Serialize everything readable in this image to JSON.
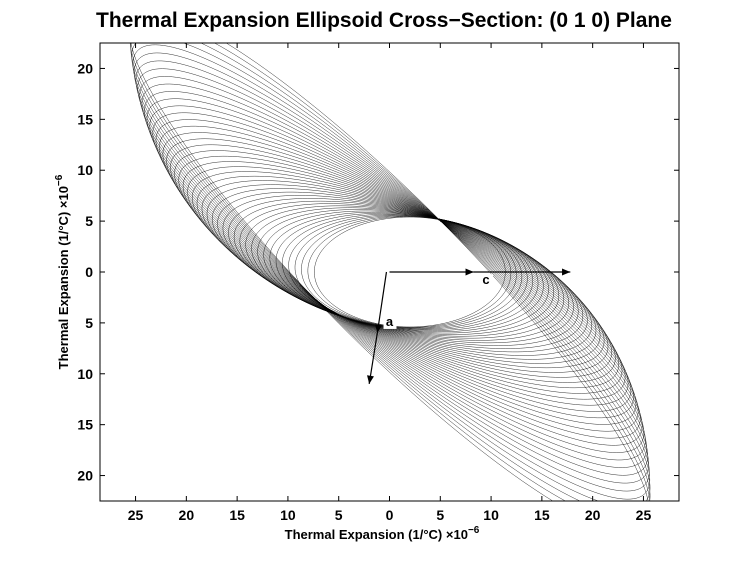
{
  "chart_data": {
    "type": "line",
    "title": "Thermal Expansion Ellipsoid Cross−Section: (0 1 0) Plane",
    "xlabel": "Thermal Expansion (1/°C) ×10",
    "xlabel_exponent": "−6",
    "ylabel": "Thermal Expansion (1/°C) ×10",
    "ylabel_exponent": "−6",
    "xlim": [
      -28.5,
      28.5
    ],
    "ylim": [
      -22.5,
      22.5
    ],
    "x_ticks": [
      {
        "value": -25,
        "label": "25"
      },
      {
        "value": -20,
        "label": "20"
      },
      {
        "value": -15,
        "label": "15"
      },
      {
        "value": -10,
        "label": "10"
      },
      {
        "value": -5,
        "label": "5"
      },
      {
        "value": 0,
        "label": "0"
      },
      {
        "value": 5,
        "label": "5"
      },
      {
        "value": 10,
        "label": "10"
      },
      {
        "value": 15,
        "label": "15"
      },
      {
        "value": 20,
        "label": "20"
      },
      {
        "value": 25,
        "label": "25"
      }
    ],
    "y_ticks": [
      {
        "value": 20,
        "label": "20"
      },
      {
        "value": 15,
        "label": "15"
      },
      {
        "value": 10,
        "label": "10"
      },
      {
        "value": 5,
        "label": "5"
      },
      {
        "value": 0,
        "label": "0"
      },
      {
        "value": -5,
        "label": "5"
      },
      {
        "value": -10,
        "label": "10"
      },
      {
        "value": -15,
        "label": "15"
      },
      {
        "value": -20,
        "label": "20"
      }
    ],
    "grid": false,
    "line_color": "#000000",
    "ellipsoid_sections": {
      "count": 45,
      "outer": {
        "center": [
          0,
          0
        ],
        "semi_major": 35.5,
        "semi_minor": 7.1,
        "angle_deg": -45
      },
      "inner": {
        "center": [
          2,
          0
        ],
        "semi_major": 9.4,
        "semi_minor": 5.4,
        "angle_deg": 0
      }
    },
    "annotations": [
      {
        "label": "c",
        "x": 9.5,
        "y": -1.2
      },
      {
        "label": "a",
        "x": 0,
        "y": -5.3
      }
    ],
    "arrows": [
      {
        "name": "c-axis-arrow",
        "from": [
          0,
          0
        ],
        "to": [
          8.3,
          0
        ]
      },
      {
        "name": "c-axis-arrow-long",
        "from": [
          8.3,
          0
        ],
        "to": [
          17.8,
          0
        ]
      },
      {
        "name": "a-axis-arrow",
        "from": [
          -0.3,
          0
        ],
        "to": [
          -1.2,
          -6
        ]
      },
      {
        "name": "a-axis-arrow-long",
        "from": [
          -1.2,
          -6
        ],
        "to": [
          -2,
          -11
        ]
      }
    ]
  }
}
